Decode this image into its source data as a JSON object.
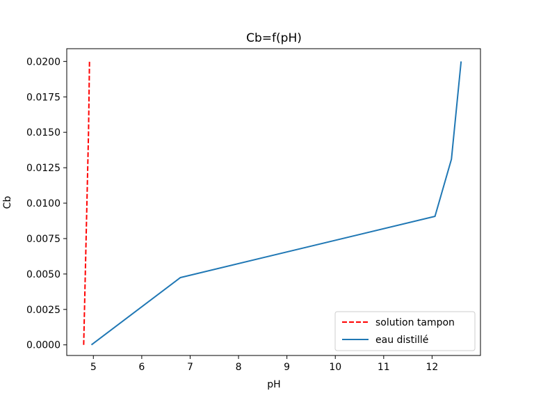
{
  "chart_data": {
    "type": "line",
    "title": "Cb=f(pH)",
    "xlabel": "pH",
    "ylabel": "Cb",
    "xlim": [
      4.45,
      13.0
    ],
    "ylim": [
      -0.00075,
      0.0209
    ],
    "xticks": [
      5,
      6,
      7,
      8,
      9,
      10,
      11,
      12
    ],
    "yticks": [
      0.0,
      0.0025,
      0.005,
      0.0075,
      0.01,
      0.0125,
      0.015,
      0.0175,
      0.02
    ],
    "ytick_labels": [
      "0.0000",
      "0.0025",
      "0.0050",
      "0.0075",
      "0.0100",
      "0.0125",
      "0.0150",
      "0.0175",
      "0.0200"
    ],
    "xtick_labels": [
      "5",
      "6",
      "7",
      "8",
      "9",
      "10",
      "11",
      "12"
    ],
    "grid": false,
    "legend_position": "lower-right",
    "series": [
      {
        "name": "solution tampon",
        "color": "#ff0000",
        "style": "dashed",
        "x": [
          4.8,
          4.85,
          4.9,
          4.92
        ],
        "y": [
          0.0,
          0.0075,
          0.015,
          0.02
        ]
      },
      {
        "name": "eau distillé",
        "color": "#1f77b4",
        "style": "solid",
        "x": [
          4.96,
          6.8,
          12.06,
          12.4,
          12.6
        ],
        "y": [
          0.0,
          0.00475,
          0.00907,
          0.0131,
          0.02
        ]
      }
    ]
  }
}
